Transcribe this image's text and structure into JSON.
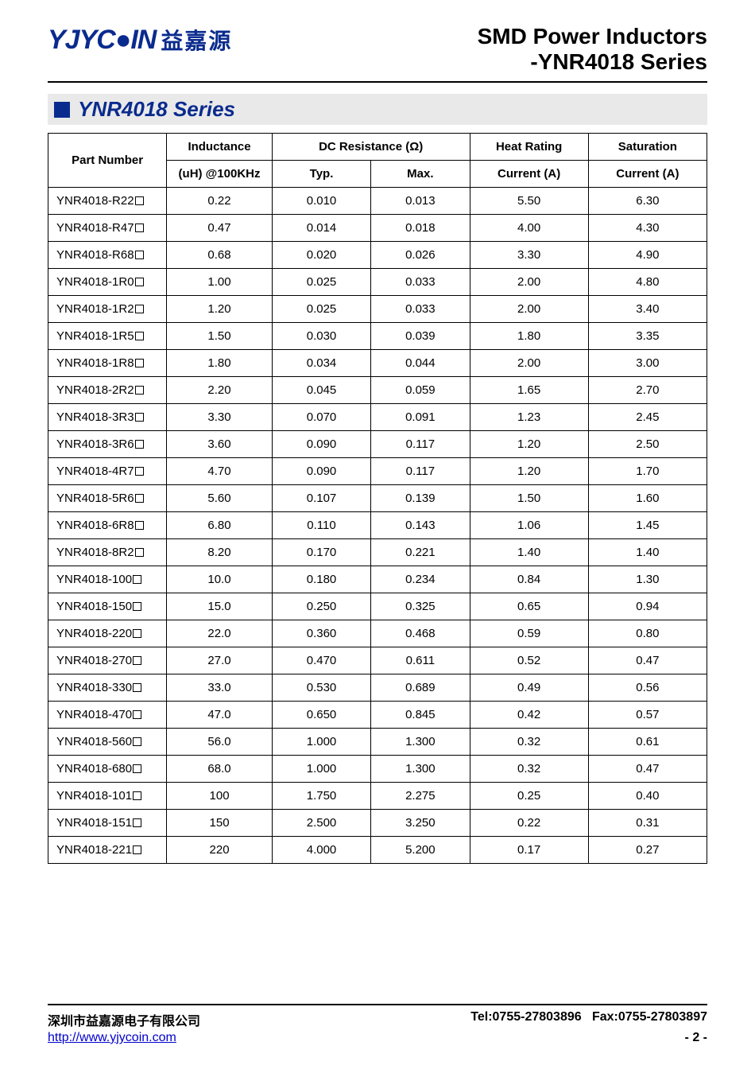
{
  "logo": {
    "en": "YJYC●IN",
    "cn": "益嘉源"
  },
  "title": {
    "line1": "SMD Power Inductors",
    "line2": "-YNR4018 Series"
  },
  "section": {
    "title": "YNR4018 Series"
  },
  "table": {
    "headers": {
      "part": "Part Number",
      "inductance_top": "Inductance",
      "inductance_sub": "(uH) @100KHz",
      "dcr": "DC Resistance (Ω)",
      "typ": "Typ.",
      "max": "Max.",
      "heat_top": "Heat Rating",
      "heat_sub": "Current (A)",
      "sat_top": "Saturation",
      "sat_sub": "Current (A)"
    },
    "rows": [
      {
        "part": "YNR4018-R22",
        "ind": "0.22",
        "typ": "0.010",
        "max": "0.013",
        "heat": "5.50",
        "sat": "6.30"
      },
      {
        "part": "YNR4018-R47",
        "ind": "0.47",
        "typ": "0.014",
        "max": "0.018",
        "heat": "4.00",
        "sat": "4.30"
      },
      {
        "part": "YNR4018-R68",
        "ind": "0.68",
        "typ": "0.020",
        "max": "0.026",
        "heat": "3.30",
        "sat": "4.90"
      },
      {
        "part": "YNR4018-1R0",
        "ind": "1.00",
        "typ": "0.025",
        "max": "0.033",
        "heat": "2.00",
        "sat": "4.80"
      },
      {
        "part": "YNR4018-1R2",
        "ind": "1.20",
        "typ": "0.025",
        "max": "0.033",
        "heat": "2.00",
        "sat": "3.40"
      },
      {
        "part": "YNR4018-1R5",
        "ind": "1.50",
        "typ": "0.030",
        "max": "0.039",
        "heat": "1.80",
        "sat": "3.35"
      },
      {
        "part": "YNR4018-1R8",
        "ind": "1.80",
        "typ": "0.034",
        "max": "0.044",
        "heat": "2.00",
        "sat": "3.00"
      },
      {
        "part": "YNR4018-2R2",
        "ind": "2.20",
        "typ": "0.045",
        "max": "0.059",
        "heat": "1.65",
        "sat": "2.70"
      },
      {
        "part": "YNR4018-3R3",
        "ind": "3.30",
        "typ": "0.070",
        "max": "0.091",
        "heat": "1.23",
        "sat": "2.45"
      },
      {
        "part": "YNR4018-3R6",
        "ind": "3.60",
        "typ": "0.090",
        "max": "0.117",
        "heat": "1.20",
        "sat": "2.50"
      },
      {
        "part": "YNR4018-4R7",
        "ind": "4.70",
        "typ": "0.090",
        "max": "0.117",
        "heat": "1.20",
        "sat": "1.70"
      },
      {
        "part": "YNR4018-5R6",
        "ind": "5.60",
        "typ": "0.107",
        "max": "0.139",
        "heat": "1.50",
        "sat": "1.60"
      },
      {
        "part": "YNR4018-6R8",
        "ind": "6.80",
        "typ": "0.110",
        "max": "0.143",
        "heat": "1.06",
        "sat": "1.45"
      },
      {
        "part": "YNR4018-8R2",
        "ind": "8.20",
        "typ": "0.170",
        "max": "0.221",
        "heat": "1.40",
        "sat": "1.40"
      },
      {
        "part": "YNR4018-100",
        "ind": "10.0",
        "typ": "0.180",
        "max": "0.234",
        "heat": "0.84",
        "sat": "1.30"
      },
      {
        "part": "YNR4018-150",
        "ind": "15.0",
        "typ": "0.250",
        "max": "0.325",
        "heat": "0.65",
        "sat": "0.94"
      },
      {
        "part": "YNR4018-220",
        "ind": "22.0",
        "typ": "0.360",
        "max": "0.468",
        "heat": "0.59",
        "sat": "0.80"
      },
      {
        "part": "YNR4018-270",
        "ind": "27.0",
        "typ": "0.470",
        "max": "0.611",
        "heat": "0.52",
        "sat": "0.47"
      },
      {
        "part": "YNR4018-330",
        "ind": "33.0",
        "typ": "0.530",
        "max": "0.689",
        "heat": "0.49",
        "sat": "0.56"
      },
      {
        "part": "YNR4018-470",
        "ind": "47.0",
        "typ": "0.650",
        "max": "0.845",
        "heat": "0.42",
        "sat": "0.57"
      },
      {
        "part": "YNR4018-560",
        "ind": "56.0",
        "typ": "1.000",
        "max": "1.300",
        "heat": "0.32",
        "sat": "0.61"
      },
      {
        "part": "YNR4018-680",
        "ind": "68.0",
        "typ": "1.000",
        "max": "1.300",
        "heat": "0.32",
        "sat": "0.47"
      },
      {
        "part": "YNR4018-101",
        "ind": "100",
        "typ": "1.750",
        "max": "2.275",
        "heat": "0.25",
        "sat": "0.40"
      },
      {
        "part": "YNR4018-151",
        "ind": "150",
        "typ": "2.500",
        "max": "3.250",
        "heat": "0.22",
        "sat": "0.31"
      },
      {
        "part": "YNR4018-221",
        "ind": "220",
        "typ": "4.000",
        "max": "5.200",
        "heat": "0.17",
        "sat": "0.27"
      }
    ]
  },
  "footer": {
    "company": "深圳市益嘉源电子有限公司",
    "tel": "Tel:0755-27803896",
    "fax": "Fax:0755-27803897",
    "url": "http://www.yjycoin.com",
    "page": "- 2 -"
  }
}
